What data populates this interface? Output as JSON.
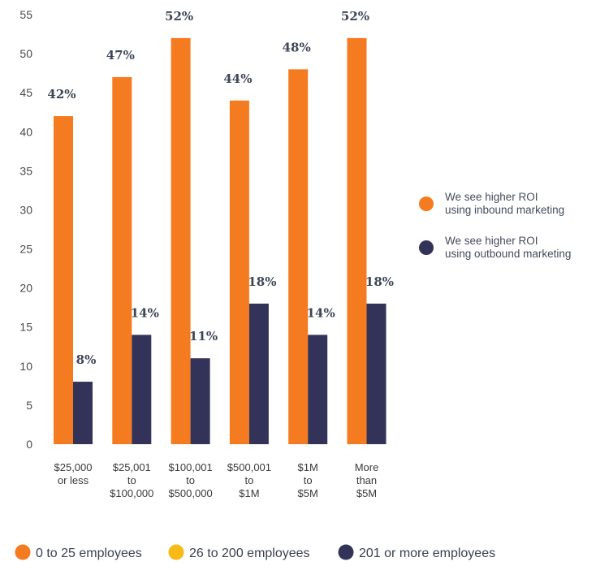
{
  "chart_data": {
    "type": "bar",
    "ylim": [
      0,
      55
    ],
    "yticks": [
      0,
      5,
      10,
      15,
      20,
      25,
      30,
      35,
      40,
      45,
      50,
      55
    ],
    "categories": [
      [
        "$25,000",
        "or less"
      ],
      [
        "$25,001",
        "to",
        "$100,000"
      ],
      [
        "$100,001",
        "to",
        "$500,000"
      ],
      [
        "$500,001",
        "to",
        "$1M"
      ],
      [
        "$1M",
        "to",
        "$5M"
      ],
      [
        "More",
        "than",
        "$5M"
      ]
    ],
    "series": [
      {
        "name": "We see higher ROI using inbound marketing",
        "legend_lines": [
          "We see higher ROI",
          "using inbound marketing"
        ],
        "color": "#f47b20",
        "values": [
          42,
          47,
          52,
          44,
          48,
          52
        ],
        "labels": [
          "42%",
          "47%",
          "52%",
          "44%",
          "48%",
          "52%"
        ]
      },
      {
        "name": "We see higher ROI using outbound marketing",
        "legend_lines": [
          "We see higher ROI",
          "using outbound marketing"
        ],
        "color": "#33335a",
        "values": [
          8,
          14,
          11,
          18,
          14,
          18
        ],
        "labels": [
          "8%",
          "14%",
          "11%",
          "18%",
          "14%",
          "18%"
        ]
      }
    ],
    "bottom_legend": [
      {
        "label": "0 to 25 employees",
        "color": "#f47b20"
      },
      {
        "label": "26 to 200 employees",
        "color": "#f9b916"
      },
      {
        "label": "201 or more employees",
        "color": "#33335a"
      }
    ]
  }
}
